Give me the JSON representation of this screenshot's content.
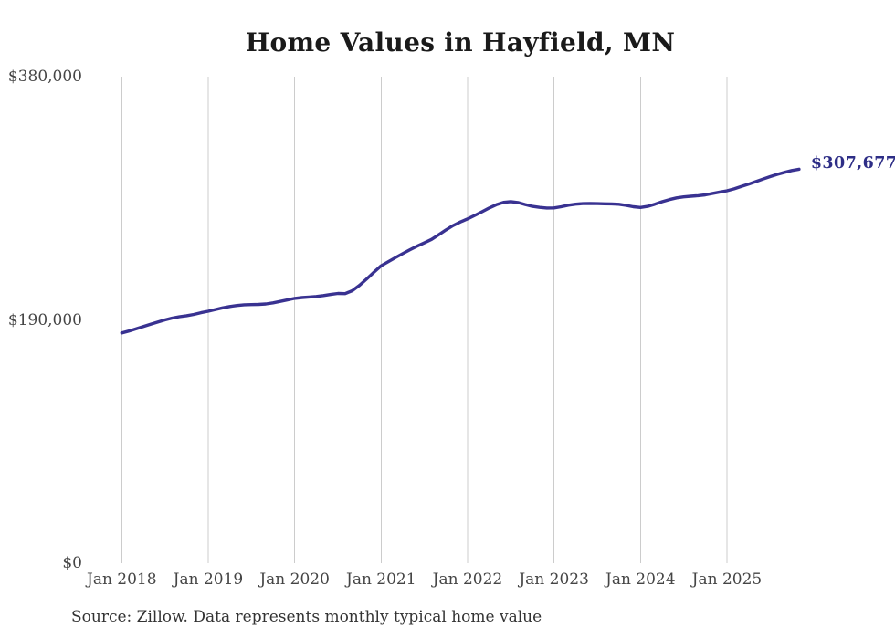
{
  "chart_data": {
    "type": "line",
    "title": "Home Values in Hayfield, MN",
    "source": "Source: Zillow. Data represents monthly typical home value",
    "series_name": "Monthly typical home value",
    "last_value_label": "$307,677",
    "last_value": 307677,
    "ylim": [
      0,
      380000
    ],
    "grid": "vertical-only",
    "legend": "none",
    "colors": {
      "line": "#393291",
      "end_label": "#2d2d86",
      "gridline": "#cccccc",
      "axis_text": "#454545",
      "title_text": "#1a1a1a",
      "source_text": "#333333",
      "background": "#ffffff"
    },
    "y_ticks": [
      {
        "value": 0,
        "label": "$0"
      },
      {
        "value": 190000,
        "label": "$190,000"
      },
      {
        "value": 380000,
        "label": "$380,000"
      }
    ],
    "x_ticks": [
      {
        "month_index": 0,
        "label": "Jan 2018"
      },
      {
        "month_index": 12,
        "label": "Jan 2019"
      },
      {
        "month_index": 24,
        "label": "Jan 2020"
      },
      {
        "month_index": 36,
        "label": "Jan 2021"
      },
      {
        "month_index": 48,
        "label": "Jan 2022"
      },
      {
        "month_index": 60,
        "label": "Jan 2023"
      },
      {
        "month_index": 72,
        "label": "Jan 2024"
      },
      {
        "month_index": 84,
        "label": "Jan 2025"
      }
    ],
    "x": [
      "2018-01",
      "2018-02",
      "2018-03",
      "2018-04",
      "2018-05",
      "2018-06",
      "2018-07",
      "2018-08",
      "2018-09",
      "2018-10",
      "2018-11",
      "2018-12",
      "2019-01",
      "2019-02",
      "2019-03",
      "2019-04",
      "2019-05",
      "2019-06",
      "2019-07",
      "2019-08",
      "2019-09",
      "2019-10",
      "2019-11",
      "2019-12",
      "2020-01",
      "2020-02",
      "2020-03",
      "2020-04",
      "2020-05",
      "2020-06",
      "2020-07",
      "2020-08",
      "2020-09",
      "2020-10",
      "2020-11",
      "2020-12",
      "2021-01",
      "2021-02",
      "2021-03",
      "2021-04",
      "2021-05",
      "2021-06",
      "2021-07",
      "2021-08",
      "2021-09",
      "2021-10",
      "2021-11",
      "2021-12",
      "2022-01",
      "2022-02",
      "2022-03",
      "2022-04",
      "2022-05",
      "2022-06",
      "2022-07",
      "2022-08",
      "2022-09",
      "2022-10",
      "2022-11",
      "2022-12",
      "2023-01",
      "2023-02",
      "2023-03",
      "2023-04",
      "2023-05",
      "2023-06",
      "2023-07",
      "2023-08",
      "2023-09",
      "2023-10",
      "2023-11",
      "2023-12",
      "2024-01",
      "2024-02",
      "2024-03",
      "2024-04",
      "2024-05",
      "2024-06",
      "2024-07",
      "2024-08",
      "2024-09",
      "2024-10",
      "2024-11",
      "2024-12",
      "2025-01",
      "2025-02",
      "2025-03",
      "2025-04",
      "2025-05",
      "2025-06",
      "2025-07",
      "2025-08",
      "2025-09",
      "2025-10",
      "2025-11"
    ],
    "values": [
      179800,
      181300,
      183000,
      184800,
      186600,
      188300,
      190000,
      191400,
      192500,
      193300,
      194300,
      195600,
      196800,
      198100,
      199400,
      200500,
      201300,
      201800,
      202000,
      202100,
      202500,
      203300,
      204500,
      205600,
      206800,
      207500,
      207900,
      208300,
      209000,
      209900,
      210700,
      210500,
      212800,
      217000,
      222000,
      227200,
      232300,
      235500,
      238700,
      241800,
      244800,
      247600,
      250200,
      252900,
      256500,
      260300,
      263700,
      266500,
      268900,
      271600,
      274500,
      277400,
      280000,
      281800,
      282400,
      281700,
      280100,
      278700,
      277900,
      277400,
      277500,
      278400,
      279600,
      280400,
      280800,
      280900,
      280800,
      280700,
      280600,
      280300,
      279500,
      278400,
      277800,
      278700,
      280400,
      282300,
      284000,
      285300,
      286100,
      286600,
      287000,
      287700,
      288800,
      289900,
      290900,
      292400,
      294200,
      296000,
      298000,
      300000,
      301900,
      303700,
      305300,
      306700,
      307677
    ]
  }
}
